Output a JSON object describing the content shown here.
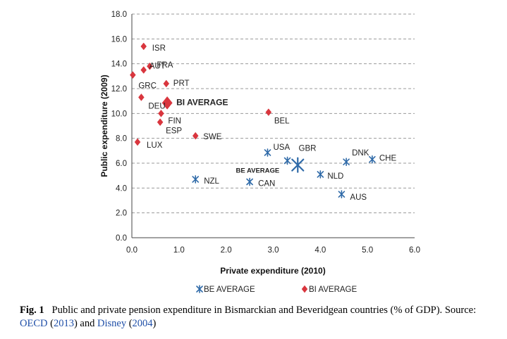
{
  "chart_data": {
    "type": "scatter",
    "xlabel": "Private expenditure (2010)",
    "ylabel": "Public expenditure (2009)",
    "xlim": [
      0,
      6
    ],
    "ylim": [
      0,
      18
    ],
    "xticks": [
      "0.0",
      "1.0",
      "2.0",
      "3.0",
      "4.0",
      "5.0",
      "6.0"
    ],
    "yticks": [
      "0.0",
      "2.0",
      "4.0",
      "6.0",
      "8.0",
      "10.0",
      "12.0",
      "14.0",
      "16.0",
      "18.0"
    ],
    "grid": "horizontal-dashed",
    "series": [
      {
        "name": "BE AVERAGE",
        "marker": "asterisk",
        "color": "#2f6aa8",
        "points": [
          {
            "label": "USA",
            "x": 2.88,
            "y": 6.85
          },
          {
            "label": "GBR",
            "x": 3.3,
            "y": 6.2
          },
          {
            "label": "DNK",
            "x": 4.55,
            "y": 6.1
          },
          {
            "label": "CHE",
            "x": 5.1,
            "y": 6.3
          },
          {
            "label": "NLD",
            "x": 4.0,
            "y": 5.1
          },
          {
            "label": "NZL",
            "x": 1.35,
            "y": 4.7
          },
          {
            "label": "CAN",
            "x": 2.5,
            "y": 4.5
          },
          {
            "label": "AUS",
            "x": 4.45,
            "y": 3.5
          },
          {
            "label": "BE AVERAGE",
            "x": 3.52,
            "y": 5.85,
            "average": true
          }
        ]
      },
      {
        "name": "BI AVERAGE",
        "marker": "diamond",
        "color": "#d9363e",
        "points": [
          {
            "label": "ISR",
            "x": 0.25,
            "y": 15.4
          },
          {
            "label": "FRA",
            "x": 0.38,
            "y": 13.8
          },
          {
            "label": "AUT",
            "x": 0.25,
            "y": 13.5
          },
          {
            "label": "GRC",
            "x": 0.02,
            "y": 13.1
          },
          {
            "label": "PRT",
            "x": 0.73,
            "y": 12.4
          },
          {
            "label": "DEU",
            "x": 0.2,
            "y": 11.3
          },
          {
            "label": "BI AVERAGE",
            "x": 0.75,
            "y": 10.85,
            "average": true
          },
          {
            "label": "FIN",
            "x": 0.62,
            "y": 10.0
          },
          {
            "label": "ESP",
            "x": 0.6,
            "y": 9.3
          },
          {
            "label": "BEL",
            "x": 2.9,
            "y": 10.1
          },
          {
            "label": "SWE",
            "x": 1.35,
            "y": 8.2
          },
          {
            "label": "LUX",
            "x": 0.12,
            "y": 7.7
          }
        ]
      }
    ],
    "legend": {
      "placement": "bottom-center",
      "entries": [
        "BE AVERAGE",
        "BI AVERAGE"
      ]
    }
  },
  "caption": {
    "fig_label": "Fig. 1",
    "text_main": "Public and private pension expenditure in Bismarckian and Beveridgean countries (% of GDP).",
    "source_prefix": "Source:",
    "ref1_name": "OECD",
    "ref1_open": "(",
    "ref1_year": "2013",
    "ref1_close": ")",
    "joiner": "and",
    "ref2_name": "Disney",
    "ref2_open": "(",
    "ref2_year": "2004",
    "ref2_close": ")"
  }
}
